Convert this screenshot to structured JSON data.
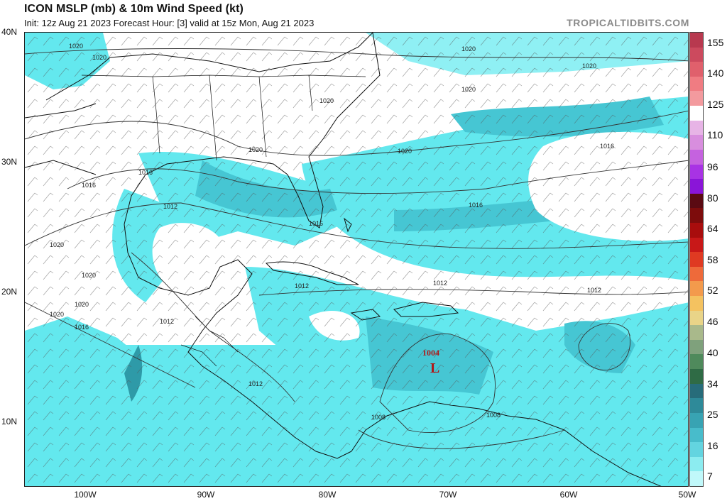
{
  "header": {
    "title": "ICON MSLP (mb) & 10m Wind Speed (kt)",
    "subtitle": "Init: 12z Aug 21 2023   Forecast Hour: [3]   valid at 15z Mon, Aug 21 2023",
    "brand": "TROPICALTIDBITS.COM"
  },
  "map": {
    "lat_labels": [
      "40N",
      "30N",
      "20N",
      "10N"
    ],
    "lon_labels": [
      "100W",
      "90W",
      "80W",
      "70W",
      "60W",
      "50W"
    ],
    "isobar_labels": [
      "1020",
      "1020",
      "1020",
      "1020",
      "1020",
      "1020",
      "1020",
      "1020",
      "1020",
      "1020",
      "1016",
      "1016",
      "1016",
      "1016",
      "1016",
      "1012",
      "1012",
      "1012",
      "1012",
      "1012",
      "1012",
      "1008",
      "1008",
      "1020",
      "1016",
      "1020"
    ],
    "low_center": {
      "pressure": "1004",
      "symbol": "L"
    }
  },
  "colorbar": {
    "labels": [
      "155",
      "140",
      "125",
      "110",
      "96",
      "80",
      "64",
      "58",
      "52",
      "46",
      "40",
      "34",
      "25",
      "16",
      "7"
    ],
    "colors": [
      "#b8394f",
      "#cc4a5e",
      "#e0606c",
      "#f07c82",
      "#f39a9e",
      "#ffffff",
      "#e7b4e6",
      "#d88ede",
      "#c562df",
      "#a833e4",
      "#8a15d8",
      "#5a0a12",
      "#7d0c0c",
      "#a80d0d",
      "#c81818",
      "#df3a22",
      "#ee6a3a",
      "#f39a4c",
      "#f4c260",
      "#e9d488",
      "#a9b98b",
      "#7fa17c",
      "#4f8a5c",
      "#2f6b45",
      "#276c7a",
      "#2e8a99",
      "#38a3b3",
      "#48bccb",
      "#63d4e0",
      "#8cecf0",
      "#c0f8fa"
    ]
  }
}
